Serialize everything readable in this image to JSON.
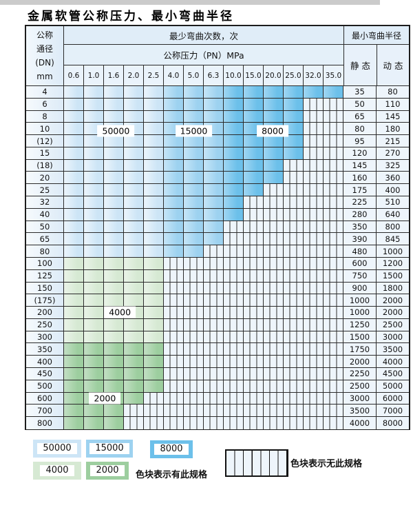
{
  "title": "金属软管公称压力、最小弯曲半径",
  "table": {
    "header": {
      "dn_label": "公称\n通径\n(DN)\nmm",
      "bend_cycles": "最少弯曲次数，次",
      "pressure": "公称压力（PN）MPa",
      "min_radius": "最小弯曲半径",
      "static_label": "静 态",
      "dynamic_label": "动 态"
    },
    "pn_values": [
      "0.6",
      "1.0",
      "1.6",
      "2.0",
      "2.5",
      "4.0",
      "5.0",
      "6.3",
      "10.0",
      "15.0",
      "20.0",
      "25.0",
      "32.0",
      "35.0"
    ],
    "blue_bands": [
      {
        "upto": 5,
        "band": "b50000"
      },
      {
        "upto": 8,
        "band": "b15000"
      },
      {
        "upto": 14,
        "band": "b8000"
      }
    ],
    "rows": [
      {
        "dn": "4",
        "cols": 14,
        "band": "blue",
        "static": "35",
        "dynamic": "80"
      },
      {
        "dn": "6",
        "cols": 12,
        "band": "blue",
        "static": "50",
        "dynamic": "110"
      },
      {
        "dn": "8",
        "cols": 12,
        "band": "blue",
        "static": "65",
        "dynamic": "145"
      },
      {
        "dn": "10",
        "cols": 12,
        "band": "blue",
        "static": "80",
        "dynamic": "180"
      },
      {
        "dn": "(12)",
        "cols": 12,
        "band": "blue",
        "static": "95",
        "dynamic": "215"
      },
      {
        "dn": "15",
        "cols": 12,
        "band": "blue",
        "static": "120",
        "dynamic": "270"
      },
      {
        "dn": "(18)",
        "cols": 11,
        "band": "blue",
        "static": "145",
        "dynamic": "325"
      },
      {
        "dn": "20",
        "cols": 11,
        "band": "blue",
        "static": "160",
        "dynamic": "360"
      },
      {
        "dn": "25",
        "cols": 10,
        "band": "blue",
        "static": "175",
        "dynamic": "400"
      },
      {
        "dn": "32",
        "cols": 9,
        "band": "blue",
        "static": "225",
        "dynamic": "510"
      },
      {
        "dn": "40",
        "cols": 9,
        "band": "blue",
        "static": "280",
        "dynamic": "640"
      },
      {
        "dn": "50",
        "cols": 8,
        "band": "blue",
        "static": "350",
        "dynamic": "800"
      },
      {
        "dn": "65",
        "cols": 8,
        "band": "blue",
        "static": "390",
        "dynamic": "845"
      },
      {
        "dn": "80",
        "cols": 7,
        "band": "blue",
        "static": "480",
        "dynamic": "1000"
      },
      {
        "dn": "100",
        "cols": 5,
        "band": "g4000",
        "static": "600",
        "dynamic": "1200"
      },
      {
        "dn": "125",
        "cols": 5,
        "band": "g4000",
        "static": "750",
        "dynamic": "1500"
      },
      {
        "dn": "150",
        "cols": 5,
        "band": "g4000",
        "static": "900",
        "dynamic": "1800"
      },
      {
        "dn": "(175)",
        "cols": 5,
        "band": "g4000",
        "static": "1000",
        "dynamic": "2000"
      },
      {
        "dn": "200",
        "cols": 5,
        "band": "g4000",
        "static": "1000",
        "dynamic": "2000"
      },
      {
        "dn": "250",
        "cols": 5,
        "band": "g4000",
        "static": "1250",
        "dynamic": "2500"
      },
      {
        "dn": "300",
        "cols": 5,
        "band": "g4000",
        "static": "1500",
        "dynamic": "3000"
      },
      {
        "dn": "350",
        "cols": 5,
        "band": "g2000",
        "static": "1750",
        "dynamic": "3500"
      },
      {
        "dn": "400",
        "cols": 5,
        "band": "g2000",
        "static": "2000",
        "dynamic": "4000"
      },
      {
        "dn": "450",
        "cols": 5,
        "band": "g2000",
        "static": "2250",
        "dynamic": "4500"
      },
      {
        "dn": "500",
        "cols": 5,
        "band": "g2000",
        "static": "2500",
        "dynamic": "5000"
      },
      {
        "dn": "600",
        "cols": 4,
        "band": "g2000",
        "static": "3000",
        "dynamic": "6000"
      },
      {
        "dn": "700",
        "cols": 3,
        "band": "g2000",
        "static": "3500",
        "dynamic": "7000"
      },
      {
        "dn": "800",
        "cols": 3,
        "band": "g2000",
        "static": "4000",
        "dynamic": "8000"
      }
    ],
    "overlays": [
      {
        "text": "50000",
        "col": 2.1,
        "row": 3.72
      },
      {
        "text": "15000",
        "col": 6.0,
        "row": 3.72
      },
      {
        "text": "8000",
        "col": 9.95,
        "row": 3.72
      },
      {
        "text": "4000",
        "col": 2.3,
        "row": 18.5
      },
      {
        "text": "2000",
        "col": 1.55,
        "row": 25.55
      }
    ]
  },
  "legend": {
    "swatches": [
      {
        "text": "50000",
        "band": "b50000"
      },
      {
        "text": "15000",
        "band": "b15000"
      },
      {
        "text": "8000",
        "band": "b8000"
      },
      {
        "text": "4000",
        "band": "g4000"
      },
      {
        "text": "2000",
        "band": "g2000"
      }
    ],
    "has_spec_label": "色块表示有此规格",
    "no_spec_label": "色块表示无此规格"
  },
  "palette": {
    "b50000": {
      "base": "#cde5f6",
      "light": "#ecf5fc"
    },
    "b15000": {
      "base": "#9dd2f0",
      "light": "#c6e5f7"
    },
    "b8000": {
      "base": "#6cc0ea",
      "light": "#a0d6f2"
    },
    "g4000": {
      "base": "#d6e9d3",
      "light": "#eaf4e8"
    },
    "g2000": {
      "base": "#9dce9f",
      "light": "#c3dfc4"
    },
    "hatch_bg": "#eef5fb",
    "hatch_line": "#2e2e2e"
  }
}
